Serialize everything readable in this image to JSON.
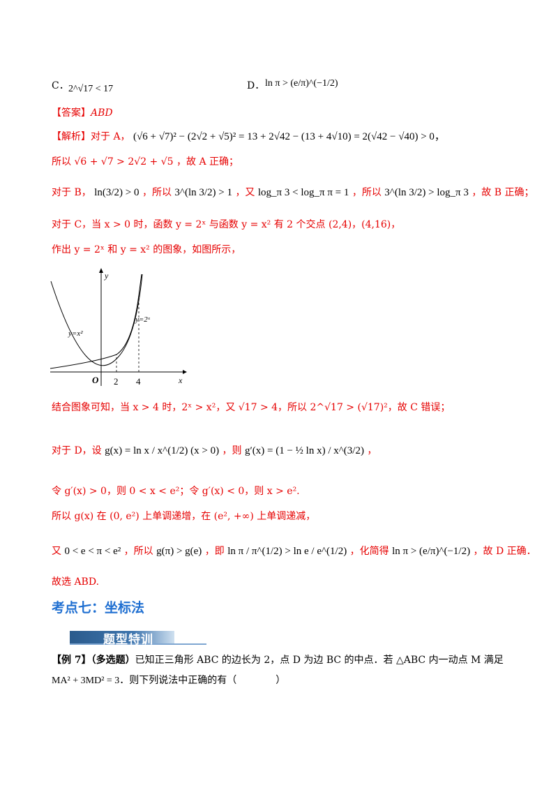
{
  "options": {
    "c_label": "C．",
    "c_math": "2^√17 < 17",
    "d_label": "D．",
    "d_math": "ln π > (e/π)^(−1/2)"
  },
  "answer": {
    "tag": "【答案】",
    "value": "ABD"
  },
  "analysis": {
    "tag": "【解析】",
    "line1_text": "对于 A，",
    "line1_math": "(√6 + √7)² − (2√2 + √5)² = 13 + 2√42 − (13 + 4√10) = 2(√42 − √40) > 0，",
    "line2": "所以 √6 + √7 > 2√2 + √5 ，故 A 正确；",
    "line3_a": "对于 B，",
    "line3_b": "ln(3/2) > 0",
    "line3_c": "，所以",
    "line3_d": "3^(ln 3/2) > 1",
    "line3_e": "，又",
    "line3_f": "log_π 3 < log_π π = 1",
    "line3_g": "，所以",
    "line3_h": "3^(ln 3/2) > log_π 3",
    "line3_i": "，故 B 正确；",
    "line4": "对于 C，当 x > 0 时，函数 y = 2ˣ 与函数 y = x² 有 2 个交点 (2,4)，(4,16)，",
    "line5": "作出 y = 2ˣ 和 y = x² 的图象，如图所示，",
    "line6": "结合图象可知，当 x > 4 时，2ˣ > x²，又 √17 > 4，所以 2^√17 > (√17)²，故 C 错误；",
    "line7_a": "对于 D，设",
    "line7_b": "g(x) = ln x / x^(1/2) (x > 0)",
    "line7_c": "，则",
    "line7_d": "g′(x) = (1 − ½ ln x) / x^(3/2)",
    "line7_e": "，",
    "line8": "令 g′(x) > 0，则 0 < x < e²；令 g′(x) < 0，则 x > e².",
    "line9": "所以 g(x) 在 (0, e²) 上单调递增，在 (e², +∞) 上单调递减，",
    "line10_a": "又",
    "line10_b": "0 < e < π < e²",
    "line10_c": "，所以",
    "line10_d": "g(π) > g(e)",
    "line10_e": "，即",
    "line10_f": "ln π / π^(1/2) > ln e / e^(1/2)",
    "line10_g": "，化简得",
    "line10_h": "ln π > (e/π)^(−1/2)",
    "line10_i": "，故 D 正确．",
    "conclusion": "故选 ABD."
  },
  "graph": {
    "y_label": "y",
    "x_label": "x",
    "origin_label": "O",
    "tick_2": "2",
    "tick_4": "4",
    "curve_x2_label": "y=x²",
    "curve_2x_label": "y=2ˣ"
  },
  "section": {
    "heading": "考点七：坐标法",
    "banner": "题型特训"
  },
  "example7": {
    "tag": "【例 7】",
    "type": "（多选题）",
    "line1": "已知正三角形 ABC 的边长为 2，点 D 为边 BC 的中点．若 △ABC 内一动点 M 满足",
    "line2": "MA² + 3MD² = 3．则下列说法中正确的有（　　　　）"
  },
  "colors": {
    "red": "#e60000",
    "heading_blue": "#1f6fd1",
    "banner_blue": "#2b5b8c"
  }
}
